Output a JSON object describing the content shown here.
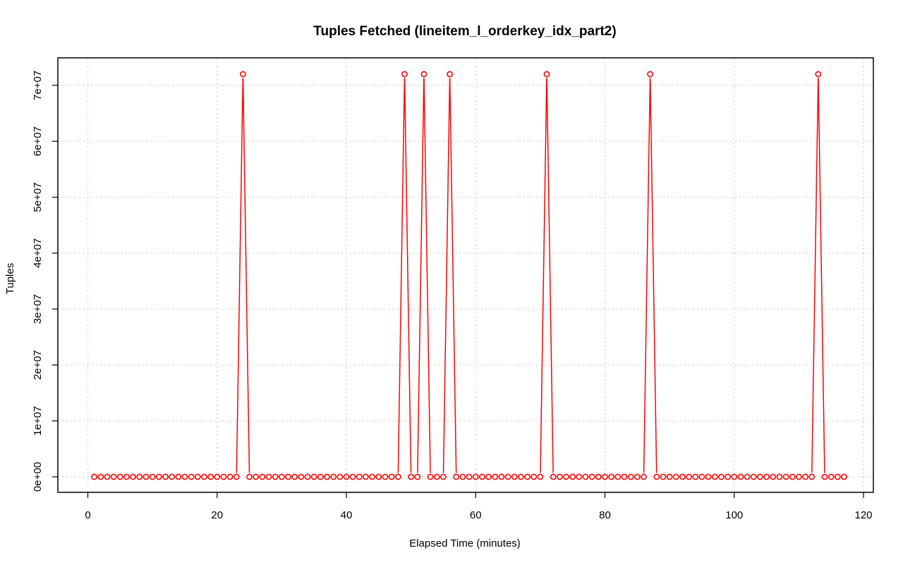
{
  "chart_data": {
    "type": "line",
    "title": "Tuples Fetched (lineitem_l_orderkey_idx_part2)",
    "xlabel": "Elapsed Time (minutes)",
    "ylabel": "Tuples",
    "xlim": [
      0,
      120
    ],
    "ylim": [
      0,
      72000000
    ],
    "x_ticks": [
      0,
      20,
      40,
      60,
      80,
      100,
      120
    ],
    "x_tick_labels": [
      "0",
      "20",
      "40",
      "60",
      "80",
      "100",
      "120"
    ],
    "y_ticks": [
      0,
      10000000,
      20000000,
      30000000,
      40000000,
      50000000,
      60000000,
      70000000
    ],
    "y_tick_labels": [
      "0e+00",
      "1e+07",
      "2e+07",
      "3e+07",
      "4e+07",
      "5e+07",
      "6e+07",
      "7e+07"
    ],
    "grid": true,
    "colors": {
      "series": "#ff0000"
    },
    "series": [
      {
        "x": [
          1,
          2,
          3,
          4,
          5,
          6,
          7,
          8,
          9,
          10,
          11,
          12,
          13,
          14,
          15,
          16,
          17,
          18,
          19,
          20,
          21,
          22,
          23,
          24,
          25,
          26,
          27,
          28,
          29,
          30,
          31,
          32,
          33,
          34,
          35,
          36,
          37,
          38,
          39,
          40,
          41,
          42,
          43,
          44,
          45,
          46,
          47,
          48,
          49,
          50,
          51,
          52,
          53,
          54,
          55,
          56,
          57,
          58,
          59,
          60,
          61,
          62,
          63,
          64,
          65,
          66,
          67,
          68,
          69,
          70,
          71,
          72,
          73,
          74,
          75,
          76,
          77,
          78,
          79,
          80,
          81,
          82,
          83,
          84,
          85,
          86,
          87,
          88,
          89,
          90,
          91,
          92,
          93,
          94,
          95,
          96,
          97,
          98,
          99,
          100,
          101,
          102,
          103,
          104,
          105,
          106,
          107,
          108,
          109,
          110,
          111,
          112,
          113,
          114,
          115,
          116,
          117
        ],
        "y": [
          0,
          0,
          0,
          0,
          0,
          0,
          0,
          0,
          0,
          0,
          0,
          0,
          0,
          0,
          0,
          0,
          0,
          0,
          0,
          0,
          0,
          0,
          0,
          72000000,
          0,
          0,
          0,
          0,
          0,
          0,
          0,
          0,
          0,
          0,
          0,
          0,
          0,
          0,
          0,
          0,
          0,
          0,
          0,
          0,
          0,
          0,
          0,
          0,
          72000000,
          0,
          0,
          72000000,
          0,
          0,
          0,
          72000000,
          0,
          0,
          0,
          0,
          0,
          0,
          0,
          0,
          0,
          0,
          0,
          0,
          0,
          0,
          72000000,
          0,
          0,
          0,
          0,
          0,
          0,
          0,
          0,
          0,
          0,
          0,
          0,
          0,
          0,
          0,
          72000000,
          0,
          0,
          0,
          0,
          0,
          0,
          0,
          0,
          0,
          0,
          0,
          0,
          0,
          0,
          0,
          0,
          0,
          0,
          0,
          0,
          0,
          0,
          0,
          0,
          0,
          72000000,
          0,
          0,
          0,
          0
        ]
      }
    ]
  }
}
